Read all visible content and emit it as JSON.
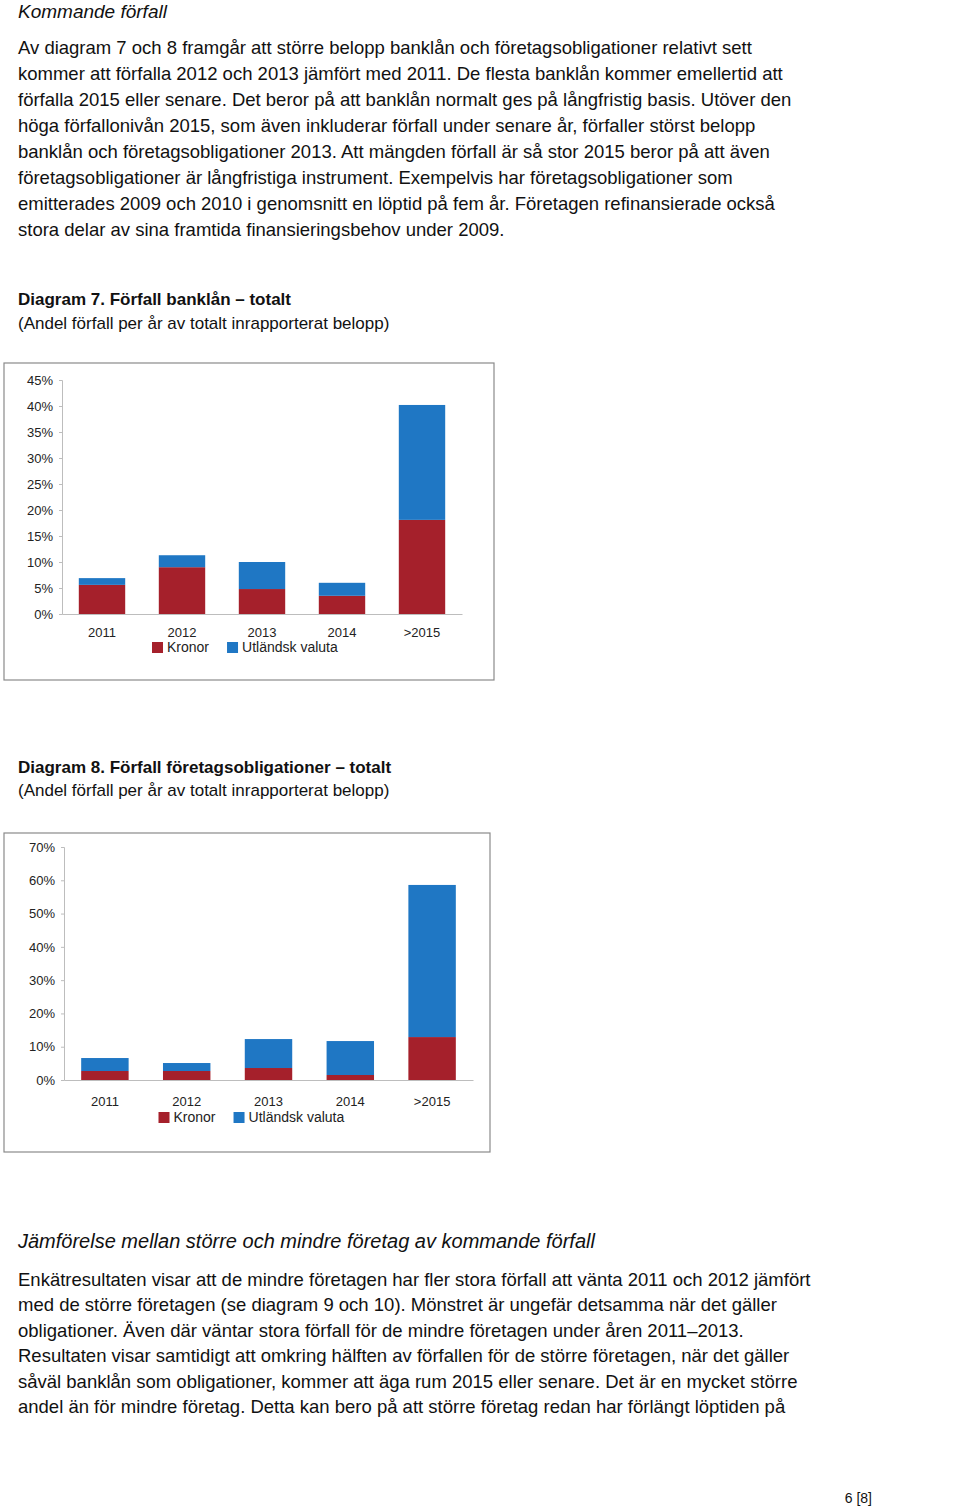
{
  "heading": "Kommande förfall",
  "paragraph": [
    "Av diagram 7 och 8 framgår att större belopp banklån och företagsobligationer relativt sett",
    "kommer att förfalla 2012 och 2013 jämfört med 2011. De flesta banklån kommer emellertid att",
    "förfalla 2015 eller senare. Det beror på att banklån normalt ges på långfristig basis. Utöver den",
    "höga förfallonivån 2015, som även inkluderar förfall under senare år, förfaller störst belopp",
    "banklån och företagsobligationer 2013. Att mängden förfall är så stor 2015 beror på att även",
    "företagsobligationer är långfristiga instrument. Exempelvis har företagsobligationer som",
    "emitterades 2009 och 2010 i genomsnitt en löptid på fem år. Företagen refinansierade också",
    "stora delar av sina framtida finansieringsbehov under 2009."
  ],
  "chart_data": [
    {
      "type": "bar",
      "stacked": true,
      "legend": "bottom",
      "title": "Diagram 7. Förfall banklån – totalt",
      "subtitle": "(Andel förfall per år av totalt inrapporterat belopp)",
      "categories": [
        "2011",
        "2012",
        "2013",
        "2014",
        ">2015"
      ],
      "series": [
        {
          "name": "Kronor",
          "color": "#a5202b",
          "values": [
            5.6,
            9.0,
            4.8,
            3.5,
            18.1
          ]
        },
        {
          "name": "Utländsk valuta",
          "color": "#1f77c4",
          "values": [
            1.3,
            2.3,
            5.2,
            2.5,
            22.1
          ]
        }
      ],
      "ylim": [
        0,
        45
      ],
      "yticks": [
        {
          "value": 0,
          "label": "0%"
        },
        {
          "value": 5,
          "label": "5%"
        },
        {
          "value": 10,
          "label": "10%"
        },
        {
          "value": 15,
          "label": "15%"
        },
        {
          "value": 20,
          "label": "20%"
        },
        {
          "value": 25,
          "label": "25%"
        },
        {
          "value": 30,
          "label": "30%"
        },
        {
          "value": 35,
          "label": "35%"
        },
        {
          "value": 40,
          "label": "40%"
        },
        {
          "value": 45,
          "label": "45%"
        }
      ]
    },
    {
      "type": "bar",
      "stacked": true,
      "legend": "bottom",
      "title": "Diagram 8. Förfall företagsobligationer – totalt",
      "subtitle": "(Andel förfall per år av totalt inrapporterat belopp)",
      "categories": [
        "2011",
        "2012",
        "2013",
        "2014",
        ">2015"
      ],
      "series": [
        {
          "name": "Kronor",
          "color": "#a5202b",
          "values": [
            2.7,
            2.7,
            3.6,
            1.5,
            12.9
          ]
        },
        {
          "name": "Utländsk valuta",
          "color": "#1f77c4",
          "values": [
            3.9,
            2.4,
            8.7,
            10.2,
            45.7
          ]
        }
      ],
      "ylim": [
        0,
        70
      ],
      "yticks": [
        {
          "value": 0,
          "label": "0%"
        },
        {
          "value": 10,
          "label": "10%"
        },
        {
          "value": 20,
          "label": "20%"
        },
        {
          "value": 30,
          "label": "30%"
        },
        {
          "value": 40,
          "label": "40%"
        },
        {
          "value": 50,
          "label": "50%"
        },
        {
          "value": 60,
          "label": "60%"
        },
        {
          "value": 70,
          "label": "70%"
        }
      ]
    }
  ],
  "section_heading": "Jämförelse mellan större och mindre företag av kommande förfall",
  "section_paragraph": [
    "Enkätresultaten visar att de mindre företagen har fler stora förfall att vänta 2011 och 2012 jämfört",
    "med de större företagen (se diagram 9 och 10). Mönstret är ungefär detsamma när det gäller",
    "obligationer. Även där väntar stora förfall för de mindre företagen under åren 2011–2013.",
    "Resultaten visar samtidigt att omkring hälften av förfallen för de större företagen, när det gäller",
    "såväl banklån som obligationer, kommer att äga rum 2015 eller senare. Det är en mycket större",
    "andel än för mindre företag. Detta kan bero på att större företag redan har förlängt löptiden på"
  ],
  "page_number": "6 [8]"
}
